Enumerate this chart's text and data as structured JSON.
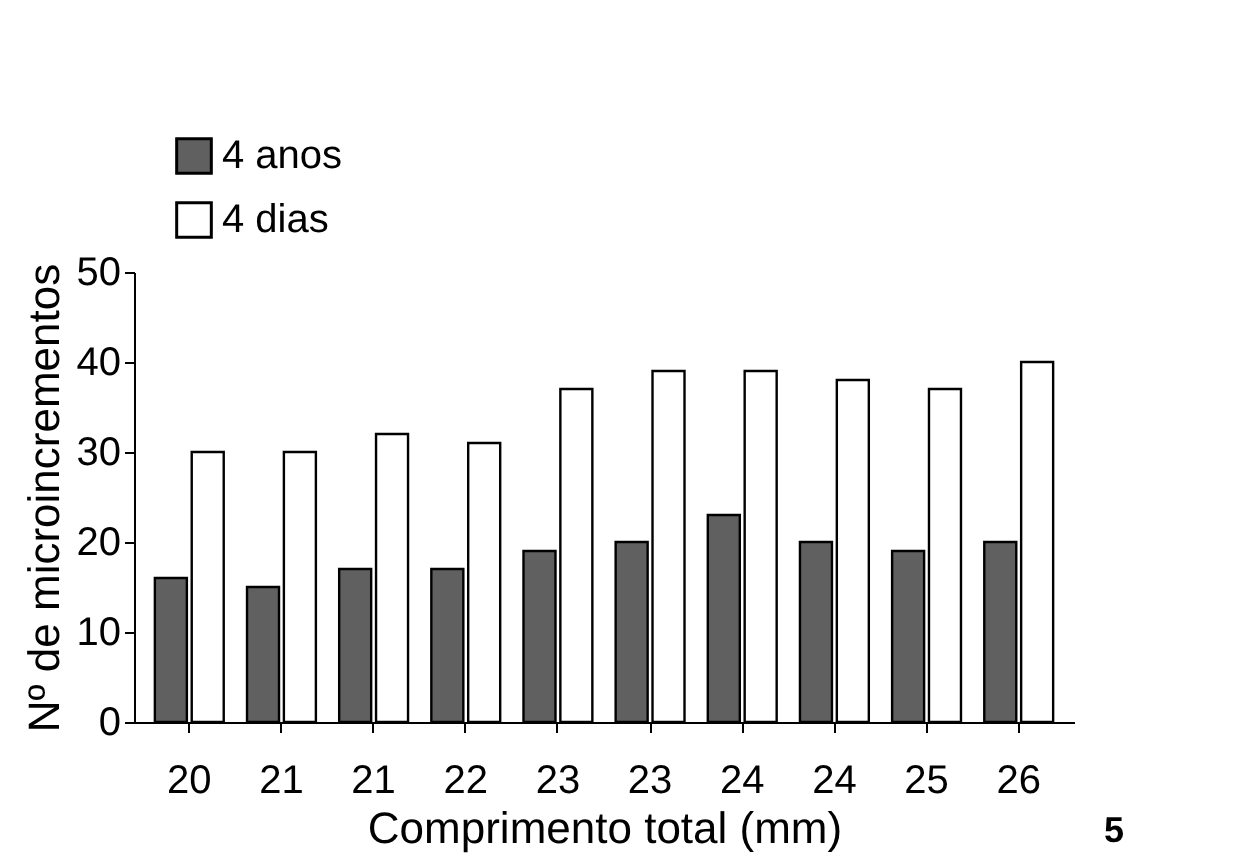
{
  "chart_data": {
    "type": "bar",
    "xlabel": "Comprimento total (mm)",
    "ylabel": "Nº de microincrementos",
    "categories": [
      "20",
      "21",
      "21",
      "22",
      "23",
      "23",
      "24",
      "24",
      "25",
      "26"
    ],
    "series": [
      {
        "name": "4 anos",
        "color": "#606060",
        "values": [
          16,
          15,
          17,
          17,
          19,
          20,
          23,
          20,
          19,
          20
        ]
      },
      {
        "name": "4 dias",
        "color": "#ffffff",
        "values": [
          30,
          30,
          32,
          31,
          37,
          39,
          39,
          38,
          37,
          40
        ]
      }
    ],
    "ylim": [
      0,
      50
    ],
    "yticks": [
      0,
      10,
      20,
      30,
      40,
      50
    ],
    "grid": false,
    "legend": "top left",
    "annotations": [
      "5"
    ]
  }
}
